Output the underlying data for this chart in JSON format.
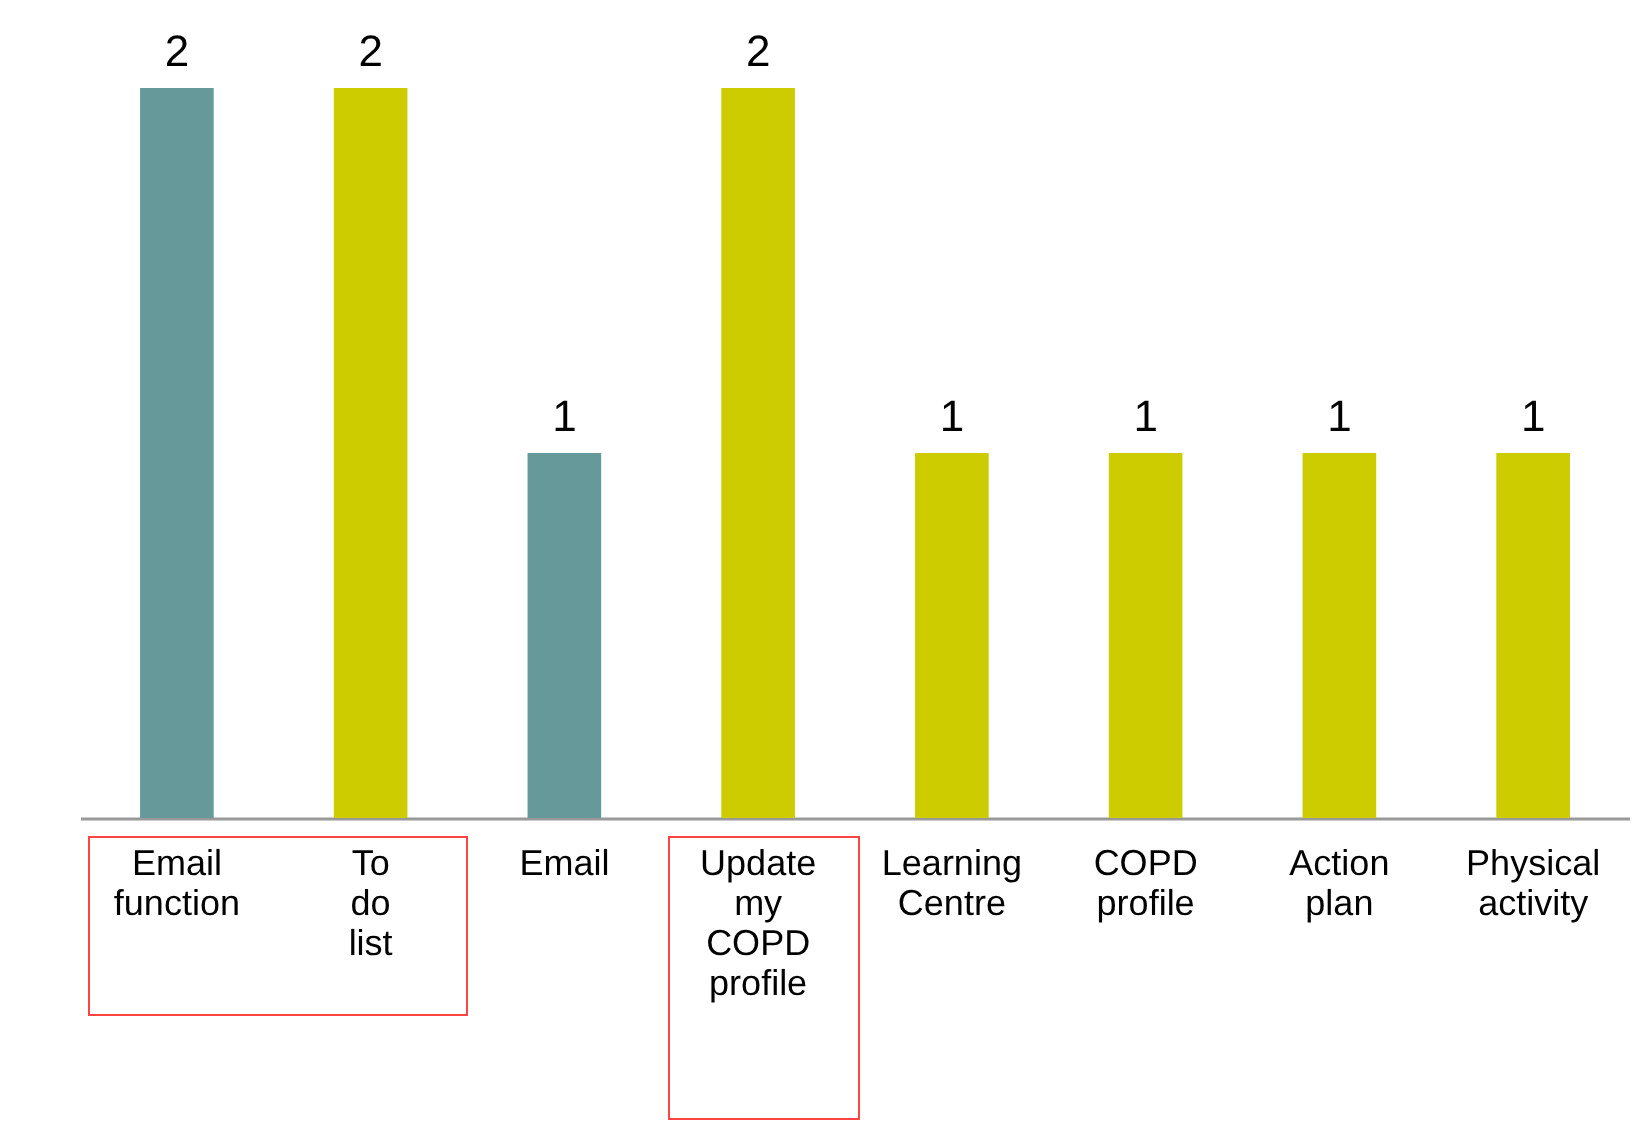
{
  "chart_data": {
    "type": "bar",
    "categories": [
      "Email function",
      "To do list",
      "Email",
      "Update my COPD profile",
      "Learning Centre",
      "COPD profile",
      "Action plan",
      "Physical activity"
    ],
    "values": [
      2,
      2,
      1,
      2,
      1,
      1,
      1,
      1
    ],
    "colors": [
      "#669999",
      "#cccc00",
      "#669999",
      "#cccc00",
      "#cccc00",
      "#cccc00",
      "#cccc00",
      "#cccc00"
    ],
    "ylim": [
      0,
      2
    ],
    "tick_labels": "x",
    "data_labels": true
  }
}
